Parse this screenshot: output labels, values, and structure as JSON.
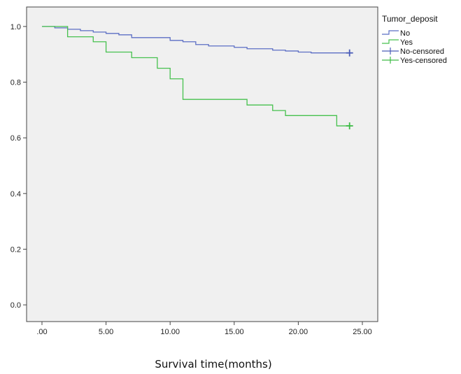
{
  "chart_data": {
    "type": "line",
    "title": "",
    "xlabel": "Survival time(months)",
    "ylabel": "",
    "xlim": [
      -1.2,
      26.2
    ],
    "ylim": [
      -0.06,
      1.07
    ],
    "x_ticks": [
      0,
      5,
      10,
      15,
      20,
      25
    ],
    "x_tick_labels": [
      ".00",
      "5.00",
      "10.00",
      "15.00",
      "20.00",
      "25.00"
    ],
    "y_ticks": [
      0,
      0.2,
      0.4,
      0.6,
      0.8,
      1.0
    ],
    "y_tick_labels": [
      "0.0",
      "0.2",
      "0.4",
      "0.6",
      "0.8",
      "1.0"
    ],
    "grid": false,
    "legend": {
      "title": "Tumor_deposit",
      "placement": "top-right outside",
      "entries": [
        "No",
        "Yes",
        "No-censored",
        "Yes-censored"
      ]
    },
    "series": [
      {
        "name": "No",
        "color": "#5b6ec4",
        "step": true,
        "points": [
          [
            0,
            1.0
          ],
          [
            1,
            0.995
          ],
          [
            2,
            0.99
          ],
          [
            3,
            0.985
          ],
          [
            4,
            0.98
          ],
          [
            5,
            0.975
          ],
          [
            6,
            0.97
          ],
          [
            7,
            0.96
          ],
          [
            10,
            0.95
          ],
          [
            11,
            0.945
          ],
          [
            12,
            0.935
          ],
          [
            13,
            0.93
          ],
          [
            15,
            0.925
          ],
          [
            16,
            0.92
          ],
          [
            18,
            0.915
          ],
          [
            19,
            0.912
          ],
          [
            20,
            0.908
          ],
          [
            21,
            0.905
          ],
          [
            24,
            0.905
          ]
        ]
      },
      {
        "name": "Yes",
        "color": "#46c14e",
        "step": true,
        "points": [
          [
            0,
            1.0
          ],
          [
            2,
            0.963
          ],
          [
            4,
            0.945
          ],
          [
            5,
            0.908
          ],
          [
            7,
            0.888
          ],
          [
            9,
            0.85
          ],
          [
            10,
            0.812
          ],
          [
            11,
            0.738
          ],
          [
            16,
            0.718
          ],
          [
            18,
            0.698
          ],
          [
            19,
            0.68
          ],
          [
            23,
            0.643
          ],
          [
            24,
            0.643
          ]
        ]
      }
    ],
    "censored": [
      {
        "name": "No-censored",
        "color": "#4a5cb8",
        "x": 24,
        "y": 0.905
      },
      {
        "name": "Yes-censored",
        "color": "#3dbb46",
        "x": 24,
        "y": 0.643
      }
    ]
  }
}
